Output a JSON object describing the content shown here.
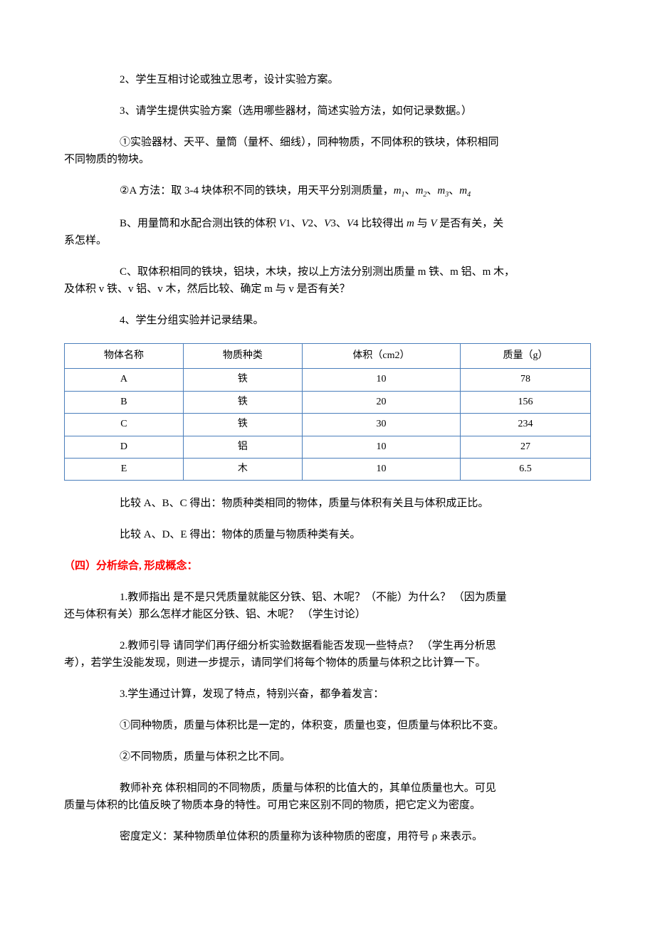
{
  "paragraphs": {
    "p1": "2、学生互相讨论或独立思考，设计实验方案。",
    "p2": "3、请学生提供实验方案（选用哪些器材，简述实验方法，如何记录数据。）",
    "p3_prefix": "①实验器材、天平、量筒（量杯、细线），同种物质，不同体积的铁块，体积相同",
    "p3_suffix": "不同物质的物块。",
    "p4_prefix": "②A 方法：取 3-4 块体积不同的铁块，用天平分别测质量，",
    "p5_prefix": "B、用量筒和水配合测出铁的体积 ",
    "p5_mid": " 比较得出 ",
    "p5_mid2": " 与 ",
    "p5_mid3": " 是否有关，关",
    "p5_suffix": "系怎样。",
    "p6_prefix": "C、取体积相同的铁块，铝块，木块，按以上方法分别测出质量 m 铁、m 铝、m 木，",
    "p6_suffix": "及体积 v 铁、v 铝、v 木，然后比较、确定 m 与 v 是否有关？",
    "p7": "4、学生分组实验并记录结果。",
    "p8": "比较 A、B、C 得出：物质种类相同的物体，质量与体积有关且与体积成正比。",
    "p9": "比较 A、D、E 得出：物体的质量与物质种类有关。",
    "p10_prefix": "1.教师指出 是不是只凭质量就能区分铁、铝、木呢？（不能）为什么？ （因为质量",
    "p10_suffix": "还与体积有关）那么怎样才能区分铁、铝、木呢？ （学生讨论）",
    "p11_prefix": "2.教师引导 请同学们再仔细分析实验数据看能否发现一些特点？ （学生再分析思",
    "p11_suffix": "考），若学生没能发现，则进一步提示，请同学们将每个物体的质量与体积之比计算一下。",
    "p12": "3.学生通过计算，发现了特点，特别兴奋，都争着发言：",
    "p13": "①同种物质，质量与体积比是一定的，体积变，质量也变，但质量与体积比不变。",
    "p14": "②不同物质，质量与体积之比不同。",
    "p15_prefix": "教师补充 体积相同的不同物质，质量与体积的比值大的，其单位质量也大。可见",
    "p15_suffix": "质量与体积的比值反映了物质本身的特性。可用它来区别不同的物质，把它定义为密度。",
    "p16": "密度定义：某种物质单位体积的质量称为该种物质的密度，用符号 ρ 来表示。"
  },
  "section_heading": "（四）分析综合, 形成概念：",
  "vars": {
    "m1": "m",
    "m1s": "1",
    "m2": "m",
    "m2s": "2",
    "m3": "m",
    "m3s": "3",
    "m4": "m",
    "m4s": "4",
    "V": "V",
    "m": "m",
    "V1": "V",
    "V2": "V",
    "V3": "V",
    "V4": "V",
    "s1": "1",
    "s2": "2",
    "s3": "3",
    "s4": "4"
  },
  "table": {
    "headers": {
      "col1": "物体名称",
      "col2": "物质种类",
      "col3": "体积（cm2）",
      "col4": "质量（g）"
    },
    "rows": [
      {
        "name": "A",
        "material": "铁",
        "volume": "10",
        "mass": "78"
      },
      {
        "name": "B",
        "material": "铁",
        "volume": "20",
        "mass": "156"
      },
      {
        "name": "C",
        "material": "铁",
        "volume": "30",
        "mass": "234"
      },
      {
        "name": "D",
        "material": "铝",
        "volume": "10",
        "mass": "27"
      },
      {
        "name": "E",
        "material": "木",
        "volume": "10",
        "mass": "6.5"
      }
    ],
    "border_color": "#4a7ebb"
  }
}
